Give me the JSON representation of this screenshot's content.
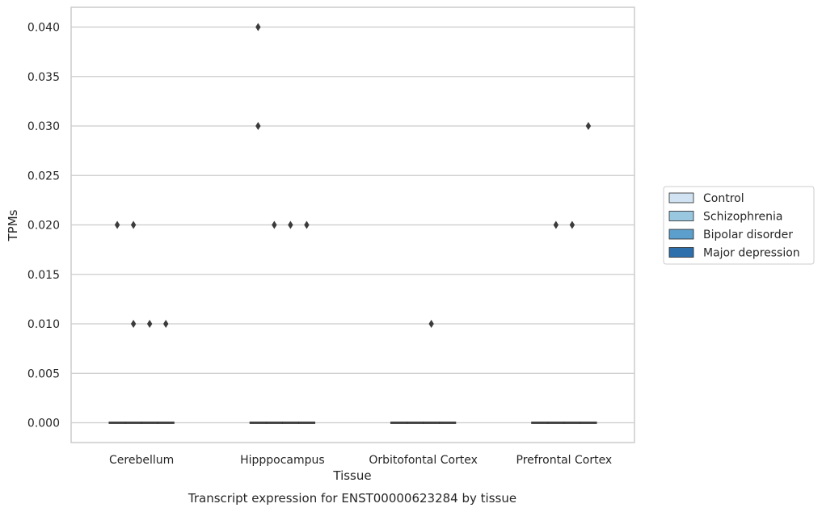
{
  "chart_data": {
    "type": "boxplot",
    "title": "",
    "caption": "Transcript expression for ENST00000623284 by tissue",
    "xlabel": "Tissue",
    "ylabel": "TPMs",
    "ylim": [
      -0.002,
      0.042
    ],
    "yticks": [
      "0.000",
      "0.005",
      "0.010",
      "0.015",
      "0.020",
      "0.025",
      "0.030",
      "0.035",
      "0.040"
    ],
    "grid": "horizontal",
    "legend_position": "right",
    "categories": [
      "Cerebellum",
      "Hipppocampus",
      "Orbitofontal Cortex",
      "Prefrontal Cortex"
    ],
    "series": [
      {
        "name": "Control",
        "color": "#d1e2f2",
        "medians": [
          0,
          0,
          0,
          0
        ],
        "outliers": [
          [
            0.02
          ],
          [
            0.04,
            0.03
          ],
          [],
          []
        ]
      },
      {
        "name": "Schizophrenia",
        "color": "#9ac7e0",
        "medians": [
          0,
          0,
          0,
          0
        ],
        "outliers": [
          [
            0.02,
            0.01
          ],
          [
            0.02
          ],
          [],
          [
            0.02
          ]
        ]
      },
      {
        "name": "Bipolar disorder",
        "color": "#5c9fcd",
        "medians": [
          0,
          0,
          0,
          0
        ],
        "outliers": [
          [
            0.01
          ],
          [
            0.02
          ],
          [
            0.01
          ],
          [
            0.02
          ]
        ]
      },
      {
        "name": "Major depression",
        "color": "#2d6ead",
        "medians": [
          0,
          0,
          0,
          0
        ],
        "outliers": [
          [
            0.01
          ],
          [
            0.02
          ],
          [],
          [
            0.03
          ]
        ]
      }
    ]
  }
}
